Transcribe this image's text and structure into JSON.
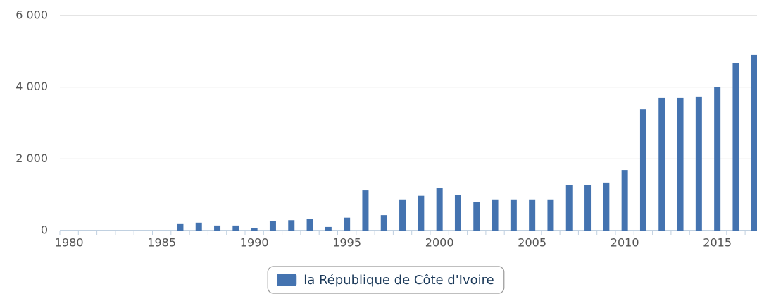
{
  "chart_data": {
    "type": "bar",
    "categories": [
      "1980",
      null,
      null,
      null,
      null,
      "1985",
      null,
      null,
      null,
      null,
      "1990",
      null,
      null,
      null,
      null,
      "1995",
      null,
      null,
      null,
      null,
      "2000",
      null,
      null,
      null,
      null,
      "2005",
      null,
      null,
      null,
      null,
      "2010",
      null,
      null,
      null,
      null,
      "2015",
      null,
      null
    ],
    "series": [
      {
        "name": "la République de Côte d'Ivoire",
        "color": "#4473b0",
        "values": [
          0,
          0,
          0,
          0,
          0,
          0,
          180,
          220,
          140,
          140,
          60,
          260,
          290,
          320,
          100,
          360,
          1120,
          430,
          870,
          970,
          1180,
          1000,
          790,
          870,
          870,
          870,
          870,
          1260,
          1260,
          1340,
          1690,
          3380,
          3700,
          3700,
          3740,
          4000,
          4680,
          4900
        ]
      }
    ],
    "ylim": [
      0,
      6000
    ],
    "yticks": [
      0,
      {
        "value": 2000,
        "label": "2 000"
      },
      {
        "value": 4000,
        "label": "4 000"
      },
      {
        "value": 6000,
        "label": "6 000"
      }
    ],
    "grid": true,
    "legend": "bottom"
  }
}
